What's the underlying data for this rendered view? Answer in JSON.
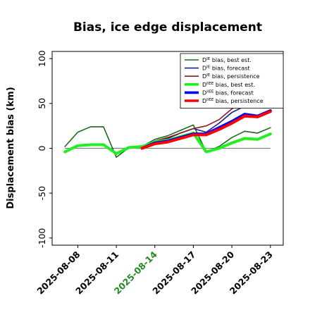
{
  "chart_data": {
    "type": "line",
    "title": "Bias, ice edge displacement",
    "xlabel": "",
    "ylabel": "Displacement bias (km)",
    "ylim": [
      -108,
      108
    ],
    "yticks": [
      -100,
      -50,
      0,
      50,
      100
    ],
    "xlim": [
      "2025-08-06",
      "2025-08-24"
    ],
    "x_tick_labels": [
      {
        "label": "2025-08-08",
        "date": "2025-08-08",
        "color": "#000000"
      },
      {
        "label": "2025-08-11",
        "date": "2025-08-11",
        "color": "#000000"
      },
      {
        "label": "2025-08-14",
        "date": "2025-08-14",
        "color": "#228b22"
      },
      {
        "label": "2025-08-17",
        "date": "2025-08-17",
        "color": "#000000"
      },
      {
        "label": "2025-08-20",
        "date": "2025-08-20",
        "color": "#000000"
      },
      {
        "label": "2025-08-23",
        "date": "2025-08-23",
        "color": "#000000"
      }
    ],
    "reference_line": {
      "y": 0,
      "color": "#808080"
    },
    "grid": false,
    "legend_position": "top-right",
    "series": [
      {
        "name_main": "D",
        "name_sup": "IE",
        "name_rest": " bias, best est.",
        "color": "#1a6b1a",
        "width": 1.6,
        "points": [
          [
            "2025-08-07",
            2
          ],
          [
            "2025-08-08",
            18
          ],
          [
            "2025-08-09",
            24
          ],
          [
            "2025-08-10",
            24
          ],
          [
            "2025-08-11",
            -10
          ],
          [
            "2025-08-12",
            1
          ],
          [
            "2025-08-13",
            2
          ],
          [
            "2025-08-14",
            10
          ],
          [
            "2025-08-15",
            14
          ],
          [
            "2025-08-16",
            20
          ],
          [
            "2025-08-17",
            26
          ],
          [
            "2025-08-18",
            -4
          ],
          [
            "2025-08-19",
            2
          ],
          [
            "2025-08-20",
            12
          ],
          [
            "2025-08-21",
            19
          ],
          [
            "2025-08-22",
            17
          ],
          [
            "2025-08-23",
            23
          ]
        ]
      },
      {
        "name_main": "D",
        "name_sup": "IE",
        "name_rest": " bias, forecast",
        "color": "#1a1a99",
        "width": 1.6,
        "points": [
          [
            "2025-08-13",
            1
          ],
          [
            "2025-08-14",
            8
          ],
          [
            "2025-08-15",
            11
          ],
          [
            "2025-08-16",
            17
          ],
          [
            "2025-08-17",
            22
          ],
          [
            "2025-08-18",
            18
          ],
          [
            "2025-08-19",
            28
          ],
          [
            "2025-08-20",
            40
          ],
          [
            "2025-08-21",
            47
          ],
          [
            "2025-08-22",
            52
          ],
          [
            "2025-08-23",
            60
          ]
        ]
      },
      {
        "name_main": "D",
        "name_sup": "IE",
        "name_rest": " bias, persistence",
        "color": "#8b1a1a",
        "width": 1.6,
        "points": [
          [
            "2025-08-13",
            1
          ],
          [
            "2025-08-14",
            8
          ],
          [
            "2025-08-15",
            12
          ],
          [
            "2025-08-16",
            17
          ],
          [
            "2025-08-17",
            22
          ],
          [
            "2025-08-18",
            25
          ],
          [
            "2025-08-19",
            32
          ],
          [
            "2025-08-20",
            44
          ],
          [
            "2025-08-21",
            52
          ],
          [
            "2025-08-22",
            56
          ],
          [
            "2025-08-23",
            62
          ]
        ]
      },
      {
        "name_main": "D",
        "name_sup": "IIEE",
        "name_rest": " bias, best est.",
        "color": "#22ee22",
        "width": 4,
        "points": [
          [
            "2025-08-07",
            -4
          ],
          [
            "2025-08-08",
            3
          ],
          [
            "2025-08-09",
            4
          ],
          [
            "2025-08-10",
            4
          ],
          [
            "2025-08-11",
            -6
          ],
          [
            "2025-08-12",
            1
          ],
          [
            "2025-08-13",
            2
          ],
          [
            "2025-08-14",
            7
          ],
          [
            "2025-08-15",
            9
          ],
          [
            "2025-08-16",
            13
          ],
          [
            "2025-08-17",
            17
          ],
          [
            "2025-08-18",
            -4
          ],
          [
            "2025-08-19",
            0
          ],
          [
            "2025-08-20",
            6
          ],
          [
            "2025-08-21",
            11
          ],
          [
            "2025-08-22",
            10
          ],
          [
            "2025-08-23",
            16
          ]
        ]
      },
      {
        "name_main": "D",
        "name_sup": "IIEE",
        "name_rest": " bias, forecast",
        "color": "#0000ff",
        "width": 4,
        "points": [
          [
            "2025-08-13",
            0
          ],
          [
            "2025-08-14",
            6
          ],
          [
            "2025-08-15",
            8
          ],
          [
            "2025-08-16",
            12
          ],
          [
            "2025-08-17",
            16
          ],
          [
            "2025-08-18",
            16
          ],
          [
            "2025-08-19",
            23
          ],
          [
            "2025-08-20",
            30
          ],
          [
            "2025-08-21",
            38
          ],
          [
            "2025-08-22",
            36
          ],
          [
            "2025-08-23",
            42
          ]
        ]
      },
      {
        "name_main": "D",
        "name_sup": "IIEE",
        "name_rest": " bias, persistence",
        "color": "#ff0000",
        "width": 4,
        "points": [
          [
            "2025-08-13",
            0
          ],
          [
            "2025-08-14",
            5
          ],
          [
            "2025-08-15",
            7
          ],
          [
            "2025-08-16",
            11
          ],
          [
            "2025-08-17",
            15
          ],
          [
            "2025-08-18",
            15
          ],
          [
            "2025-08-19",
            21
          ],
          [
            "2025-08-20",
            28
          ],
          [
            "2025-08-21",
            36
          ],
          [
            "2025-08-22",
            35
          ],
          [
            "2025-08-23",
            41
          ]
        ]
      }
    ]
  }
}
